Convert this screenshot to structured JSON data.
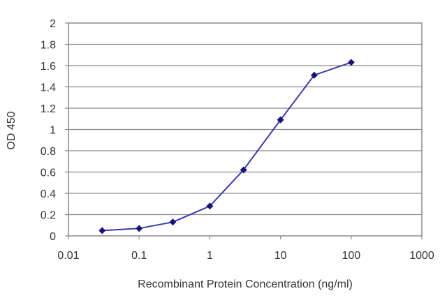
{
  "chart_data": {
    "type": "line",
    "title": "",
    "xlabel": "Recombinant Protein Concentration (ng/ml)",
    "ylabel": "OD 450",
    "xscale": "log",
    "xlim": [
      0.01,
      1000
    ],
    "ylim": [
      0,
      2
    ],
    "x_ticks": [
      "0.01",
      "0.1",
      "1",
      "10",
      "100",
      "1000"
    ],
    "y_ticks": [
      "0",
      "0.2",
      "0.4",
      "0.6",
      "0.8",
      "1",
      "1.2",
      "1.4",
      "1.6",
      "1.8",
      "2"
    ],
    "grid": "horizontal",
    "legend": "none",
    "series": [
      {
        "color": "#3a3ab0",
        "marker": "diamond",
        "x": [
          0.03,
          0.1,
          0.3,
          1,
          3,
          10,
          30,
          100
        ],
        "y": [
          0.05,
          0.07,
          0.13,
          0.28,
          0.62,
          1.09,
          1.51,
          1.63
        ]
      }
    ]
  }
}
